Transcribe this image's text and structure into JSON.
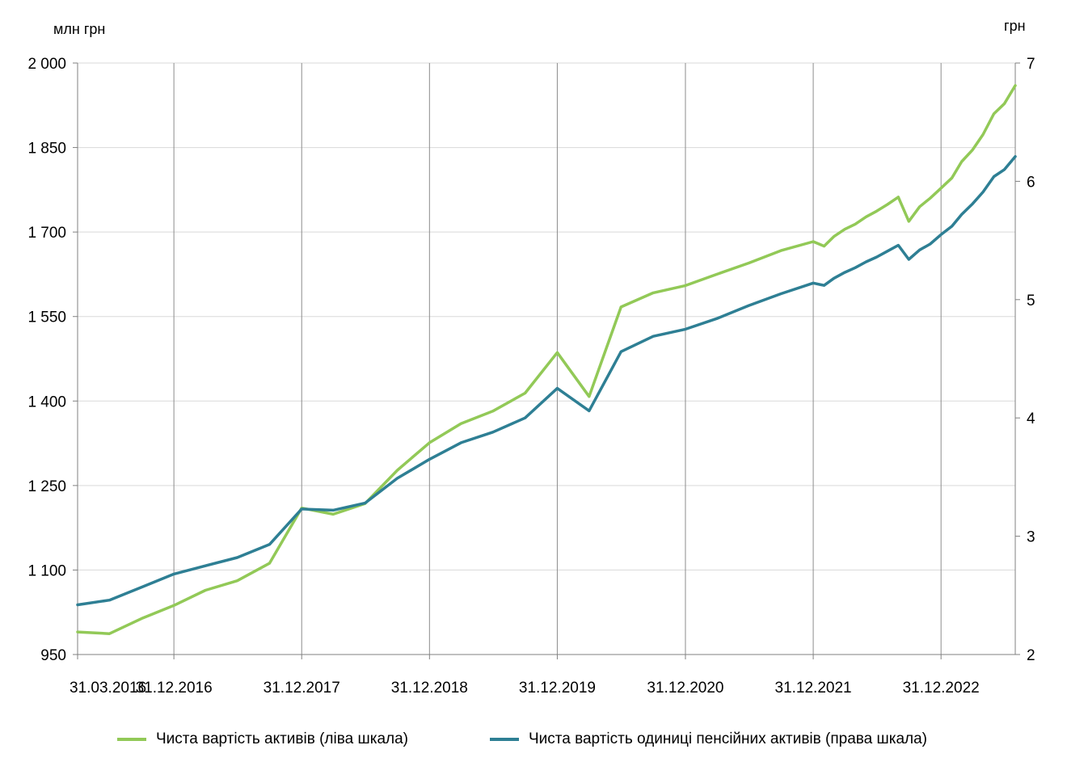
{
  "chart_data": {
    "type": "line",
    "left_unit": "млн  грн",
    "right_unit": "грн",
    "left_axis": {
      "min": 950,
      "max": 2000,
      "ticks": [
        2000,
        1850,
        1700,
        1550,
        1400,
        1250,
        1100,
        950
      ],
      "tick_labels": [
        "2 000",
        "1 850",
        "1 700",
        "1 550",
        "1 400",
        "1 250",
        "1 100",
        "950"
      ]
    },
    "right_axis": {
      "min": 2,
      "max": 7,
      "ticks": [
        7,
        6,
        5,
        4,
        3,
        2
      ],
      "tick_labels": [
        "7",
        "6",
        "5",
        "4",
        "3",
        "2"
      ]
    },
    "x_labels": [
      "31.03.2016",
      "31.12.2016",
      "31.12.2017",
      "31.12.2018",
      "31.12.2019",
      "31.12.2020",
      "31.12.2021",
      "31.12.2022"
    ],
    "grid": true,
    "legend_position": "bottom",
    "x": [
      "2016-03-31",
      "2016-06-30",
      "2016-09-30",
      "2016-12-31",
      "2017-03-31",
      "2017-06-30",
      "2017-09-30",
      "2017-12-31",
      "2018-03-31",
      "2018-06-30",
      "2018-09-30",
      "2018-12-31",
      "2019-03-31",
      "2019-06-30",
      "2019-09-30",
      "2019-12-31",
      "2020-03-31",
      "2020-06-30",
      "2020-09-30",
      "2020-12-31",
      "2021-03-31",
      "2021-06-30",
      "2021-09-30",
      "2021-12-31",
      "2022-01-31",
      "2022-02-28",
      "2022-03-31",
      "2022-04-30",
      "2022-05-31",
      "2022-06-30",
      "2022-07-31",
      "2022-08-31",
      "2022-09-30",
      "2022-10-31",
      "2022-11-30",
      "2022-12-31",
      "2023-01-31",
      "2023-02-28",
      "2023-03-31",
      "2023-04-30",
      "2023-05-31",
      "2023-06-30",
      "2023-07-31"
    ],
    "series": [
      {
        "name": "Чиста вартість активів (ліва шкала)",
        "axis": "left",
        "color": "#92c957",
        "values": [
          990,
          987,
          1014,
          1037,
          1064,
          1081,
          1112,
          1210,
          1199,
          1218,
          1277,
          1326,
          1360,
          1382,
          1414,
          1486,
          1408,
          1567,
          1592,
          1605,
          1625,
          1645,
          1667,
          1683,
          1675,
          1692,
          1705,
          1714,
          1727,
          1737,
          1749,
          1762,
          1719,
          1745,
          1760,
          1778,
          1796,
          1825,
          1846,
          1873,
          1910,
          1928,
          1960
        ]
      },
      {
        "name": "Чиста вартість одиниці  пенсійних  активів (права шкала)",
        "axis": "right",
        "color": "#2e7f94",
        "values": [
          2.42,
          2.46,
          2.57,
          2.68,
          2.75,
          2.82,
          2.93,
          3.23,
          3.22,
          3.28,
          3.49,
          3.65,
          3.79,
          3.88,
          4.0,
          4.25,
          4.06,
          4.56,
          4.69,
          4.75,
          4.84,
          4.95,
          5.05,
          5.14,
          5.12,
          5.18,
          5.23,
          5.27,
          5.32,
          5.36,
          5.41,
          5.46,
          5.34,
          5.42,
          5.47,
          5.55,
          5.62,
          5.72,
          5.81,
          5.91,
          6.04,
          6.1,
          6.21
        ]
      }
    ]
  }
}
